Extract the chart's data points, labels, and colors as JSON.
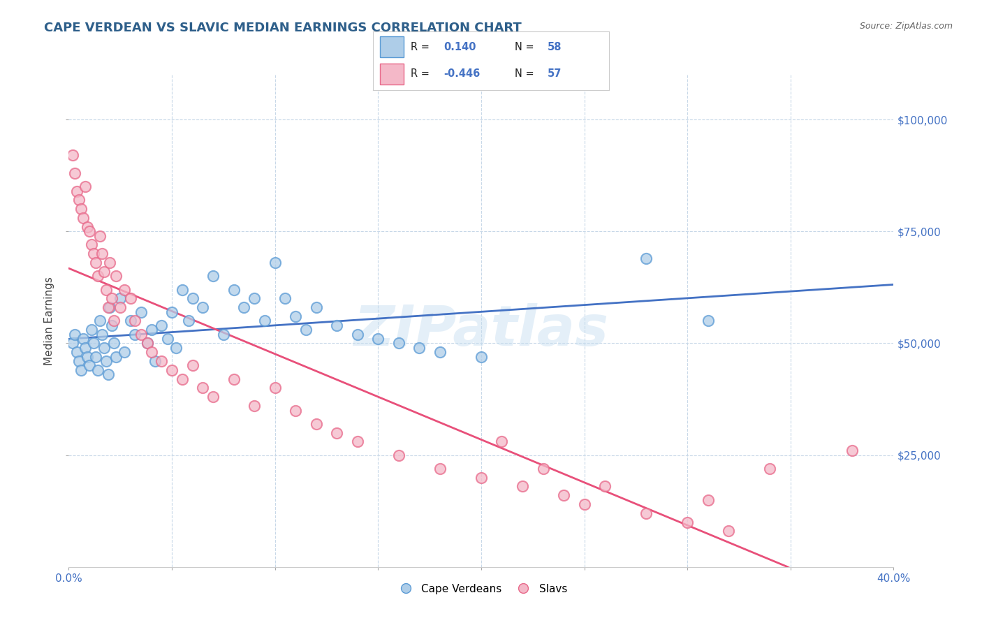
{
  "title": "CAPE VERDEAN VS SLAVIC MEDIAN EARNINGS CORRELATION CHART",
  "source": "Source: ZipAtlas.com",
  "ylabel": "Median Earnings",
  "xlim": [
    0.0,
    0.4
  ],
  "ylim": [
    0,
    110000
  ],
  "xtick_labels_edge": [
    "0.0%",
    "40.0%"
  ],
  "xtick_vals_edge": [
    0.0,
    0.4
  ],
  "xtick_minor_vals": [
    0.05,
    0.1,
    0.15,
    0.2,
    0.25,
    0.3,
    0.35
  ],
  "ytick_vals": [
    25000,
    50000,
    75000,
    100000
  ],
  "ytick_labels": [
    "$25,000",
    "$50,000",
    "$75,000",
    "$100,000"
  ],
  "watermark": "ZIPatlas",
  "blue_color": "#aecde8",
  "pink_color": "#f4b8c8",
  "blue_edge_color": "#5b9bd5",
  "pink_edge_color": "#e8698a",
  "blue_line_color": "#4472c4",
  "pink_line_color": "#e8507a",
  "title_color": "#2e5f8a",
  "source_color": "#666666",
  "grid_color": "#c8d8e8",
  "cv_r": 0.14,
  "cv_n": 58,
  "sl_r": -0.446,
  "sl_n": 57,
  "cape_verdean_x": [
    0.002,
    0.003,
    0.004,
    0.005,
    0.006,
    0.007,
    0.008,
    0.009,
    0.01,
    0.011,
    0.012,
    0.013,
    0.014,
    0.015,
    0.016,
    0.017,
    0.018,
    0.019,
    0.02,
    0.021,
    0.022,
    0.023,
    0.025,
    0.027,
    0.03,
    0.032,
    0.035,
    0.038,
    0.04,
    0.042,
    0.045,
    0.048,
    0.05,
    0.052,
    0.055,
    0.058,
    0.06,
    0.065,
    0.07,
    0.075,
    0.08,
    0.085,
    0.09,
    0.095,
    0.1,
    0.105,
    0.11,
    0.115,
    0.12,
    0.13,
    0.14,
    0.15,
    0.16,
    0.17,
    0.18,
    0.2,
    0.28,
    0.31
  ],
  "cape_verdean_y": [
    50000,
    52000,
    48000,
    46000,
    44000,
    51000,
    49000,
    47000,
    45000,
    53000,
    50000,
    47000,
    44000,
    55000,
    52000,
    49000,
    46000,
    43000,
    58000,
    54000,
    50000,
    47000,
    60000,
    48000,
    55000,
    52000,
    57000,
    50000,
    53000,
    46000,
    54000,
    51000,
    57000,
    49000,
    62000,
    55000,
    60000,
    58000,
    65000,
    52000,
    62000,
    58000,
    60000,
    55000,
    68000,
    60000,
    56000,
    53000,
    58000,
    54000,
    52000,
    51000,
    50000,
    49000,
    48000,
    47000,
    69000,
    55000
  ],
  "slavic_x": [
    0.002,
    0.003,
    0.004,
    0.005,
    0.006,
    0.007,
    0.008,
    0.009,
    0.01,
    0.011,
    0.012,
    0.013,
    0.014,
    0.015,
    0.016,
    0.017,
    0.018,
    0.019,
    0.02,
    0.021,
    0.022,
    0.023,
    0.025,
    0.027,
    0.03,
    0.032,
    0.035,
    0.038,
    0.04,
    0.045,
    0.05,
    0.055,
    0.06,
    0.065,
    0.07,
    0.08,
    0.09,
    0.1,
    0.11,
    0.12,
    0.13,
    0.14,
    0.16,
    0.18,
    0.2,
    0.21,
    0.22,
    0.23,
    0.24,
    0.25,
    0.26,
    0.28,
    0.3,
    0.31,
    0.32,
    0.34,
    0.38
  ],
  "slavic_y": [
    92000,
    88000,
    84000,
    82000,
    80000,
    78000,
    85000,
    76000,
    75000,
    72000,
    70000,
    68000,
    65000,
    74000,
    70000,
    66000,
    62000,
    58000,
    68000,
    60000,
    55000,
    65000,
    58000,
    62000,
    60000,
    55000,
    52000,
    50000,
    48000,
    46000,
    44000,
    42000,
    45000,
    40000,
    38000,
    42000,
    36000,
    40000,
    35000,
    32000,
    30000,
    28000,
    25000,
    22000,
    20000,
    28000,
    18000,
    22000,
    16000,
    14000,
    18000,
    12000,
    10000,
    15000,
    8000,
    22000,
    26000
  ]
}
